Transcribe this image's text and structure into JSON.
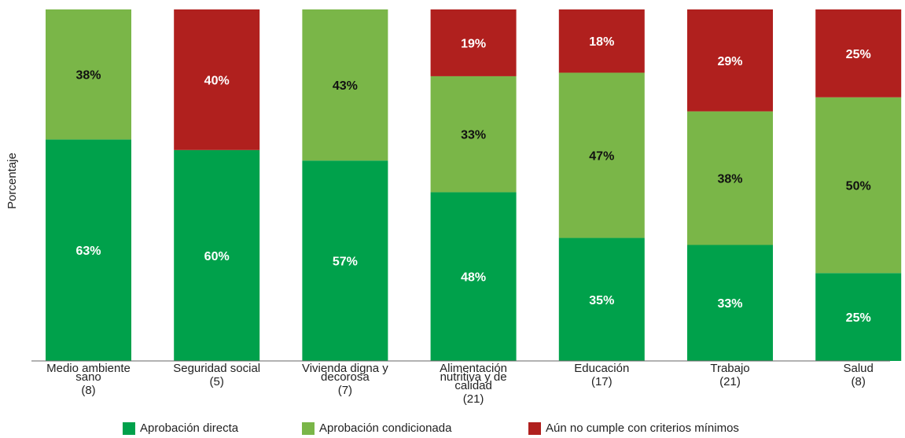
{
  "chart_data": {
    "type": "bar",
    "stacked": true,
    "ylabel": "Porcentaje",
    "xlabel": "",
    "ylim": [
      0,
      100
    ],
    "grid": false,
    "legend_position": "bottom",
    "categories": [
      {
        "label": "Medio ambiente sano",
        "count": "(8)"
      },
      {
        "label": "Seguridad social",
        "count": "(5)"
      },
      {
        "label": "Vivienda digna y decorosa",
        "count": "(7)"
      },
      {
        "label": "Alimentación nutritiva y de calidad",
        "count": "(21)"
      },
      {
        "label": "Educación",
        "count": "(17)"
      },
      {
        "label": "Trabajo",
        "count": "(21)"
      },
      {
        "label": "Salud",
        "count": "(8)"
      }
    ],
    "series": [
      {
        "name": "Aprobación directa",
        "color": "#00a14b",
        "label_color": "#ffffff",
        "values": [
          63,
          60,
          57,
          48,
          35,
          33,
          25
        ],
        "data_labels": [
          "63%",
          "60%",
          "57%",
          "48%",
          "35%",
          "33%",
          "25%"
        ]
      },
      {
        "name": "Aprobación condicionada",
        "color": "#7ab648",
        "label_color": "#111111",
        "values": [
          38,
          0,
          43,
          33,
          47,
          38,
          50
        ],
        "data_labels": [
          "38%",
          "",
          "43%",
          "33%",
          "47%",
          "38%",
          "50%"
        ]
      },
      {
        "name": "Aún no cumple con criterios mínimos",
        "color": "#b0201e",
        "label_color": "#ffffff",
        "values": [
          0,
          40,
          0,
          19,
          18,
          29,
          25
        ],
        "data_labels": [
          "",
          "40%",
          "",
          "19%",
          "18%",
          "29%",
          "25%"
        ]
      }
    ]
  }
}
